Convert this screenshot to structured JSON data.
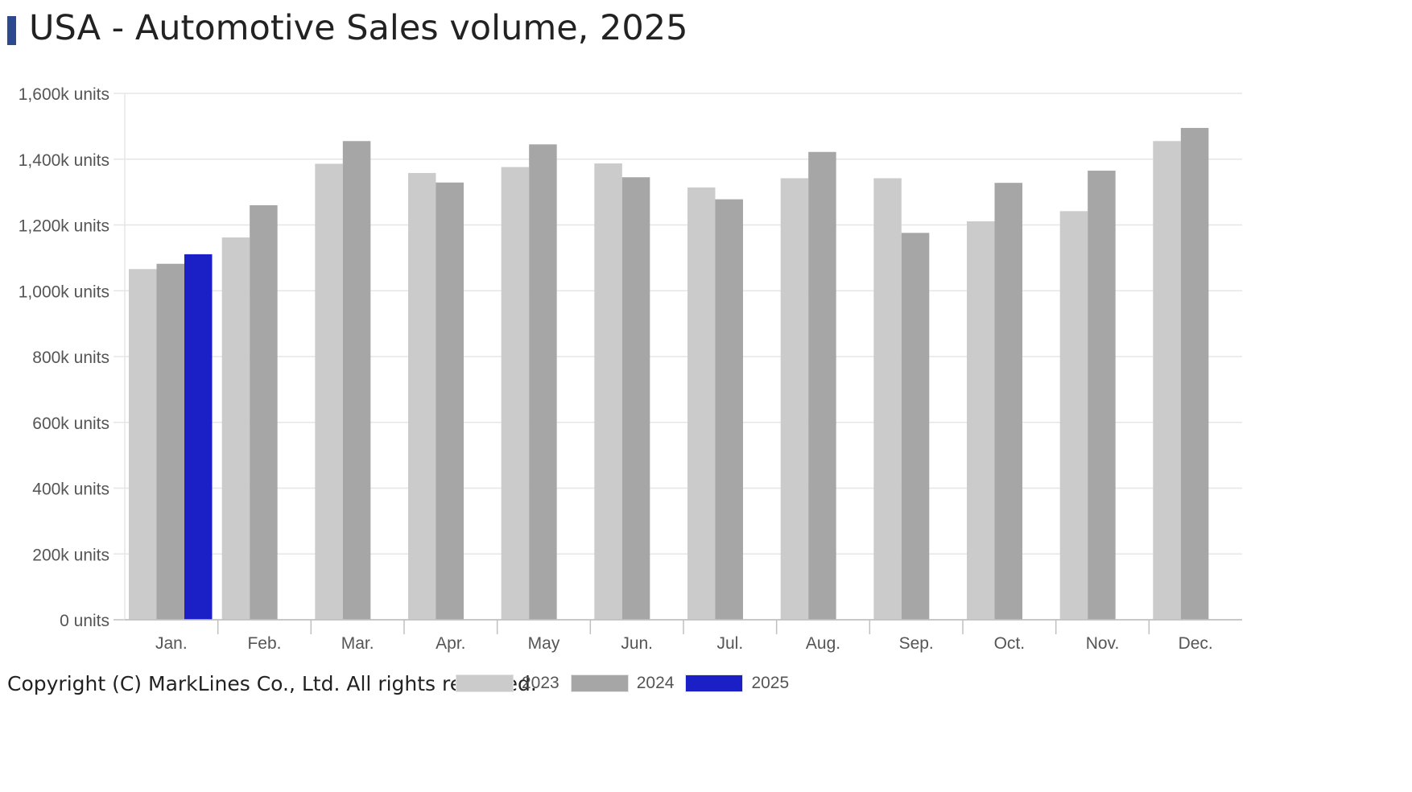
{
  "header": {
    "title": "USA - Automotive Sales volume, 2025"
  },
  "footer": {
    "copyright": "Copyright (C) MarkLines Co., Ltd. All rights reserved."
  },
  "colors": {
    "accent": "#2e4a8f",
    "series_2023": "#cbcbcb",
    "series_2024": "#a6a6a6",
    "series_2025": "#1a20c6",
    "gridline": "#e6e6e6",
    "axis": "#c0c0c0",
    "tick_text": "#555555"
  },
  "chart_data": {
    "type": "bar",
    "title": "USA - Automotive Sales volume, 2025",
    "xlabel": "",
    "ylabel": "",
    "unit_suffix": "k units",
    "ylim": [
      0,
      1600
    ],
    "y_ticks": [
      0,
      200,
      400,
      600,
      800,
      1000,
      1200,
      1400,
      1600
    ],
    "y_tick_labels": [
      "0 units",
      "200k units",
      "400k units",
      "600k units",
      "800k units",
      "1,000k units",
      "1,200k units",
      "1,400k units",
      "1,600k units"
    ],
    "grid": true,
    "legend_position": "bottom",
    "categories": [
      "Jan.",
      "Feb.",
      "Mar.",
      "Apr.",
      "May",
      "Jun.",
      "Jul.",
      "Aug.",
      "Sep.",
      "Oct.",
      "Nov.",
      "Dec."
    ],
    "series": [
      {
        "name": "2023",
        "color": "#cbcbcb",
        "values": [
          1066,
          1162,
          1386,
          1358,
          1376,
          1387,
          1314,
          1342,
          1342,
          1211,
          1242,
          1455
        ]
      },
      {
        "name": "2024",
        "color": "#a6a6a6",
        "values": [
          1082,
          1260,
          1455,
          1329,
          1445,
          1345,
          1278,
          1422,
          1176,
          1328,
          1365,
          1495
        ]
      },
      {
        "name": "2025",
        "color": "#1a20c6",
        "values": [
          1111,
          null,
          null,
          null,
          null,
          null,
          null,
          null,
          null,
          null,
          null,
          null
        ]
      }
    ]
  }
}
